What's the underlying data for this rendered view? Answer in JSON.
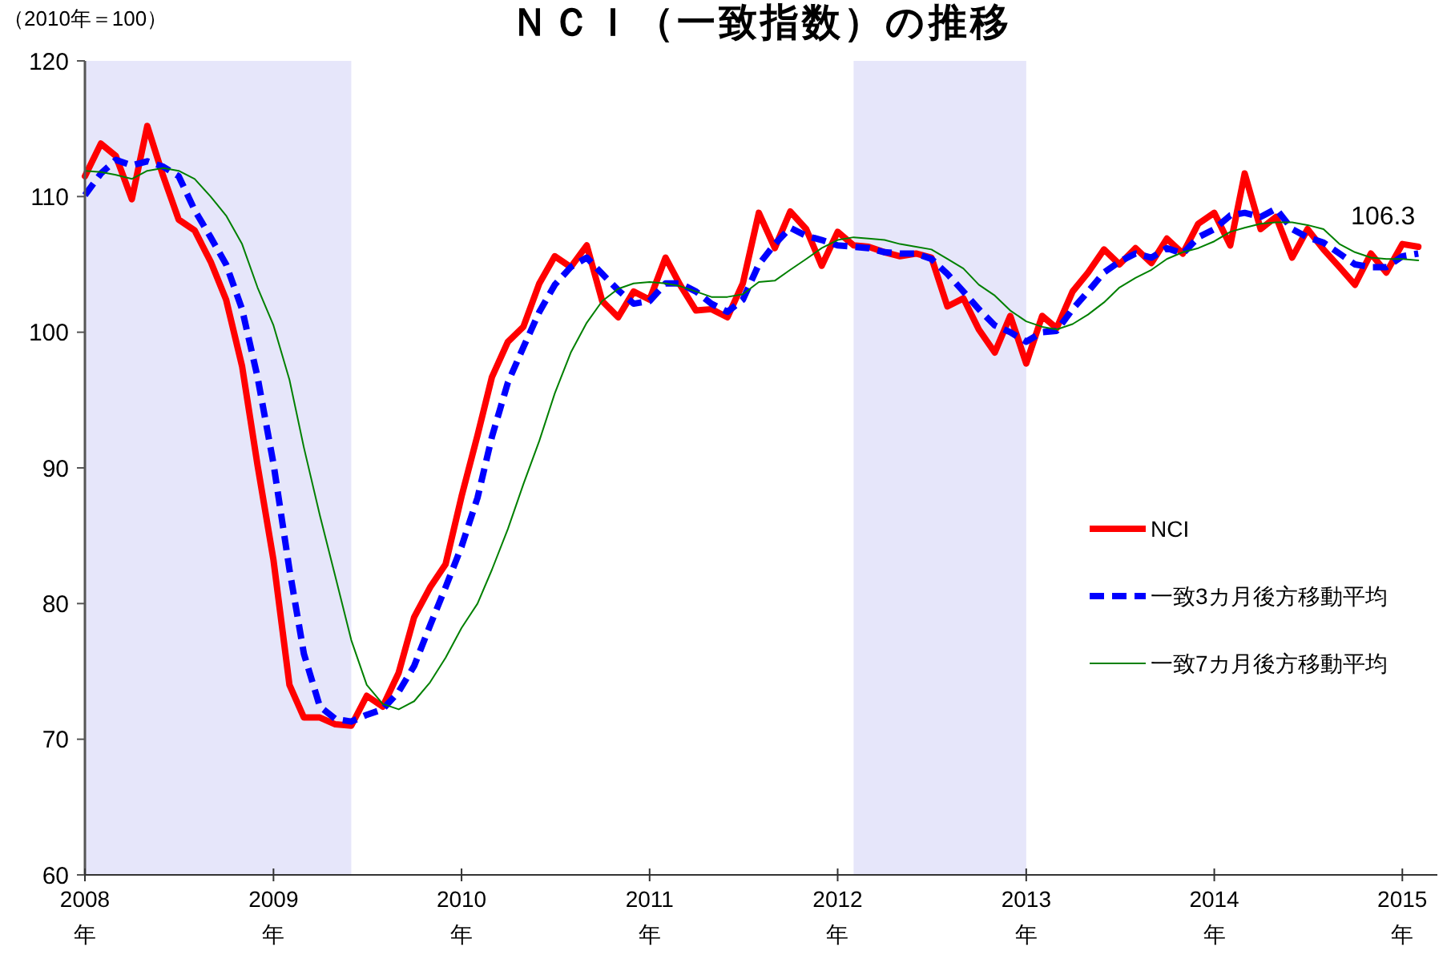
{
  "chart_data": {
    "type": "line",
    "title": "ＮＣＩ（一致指数）の推移",
    "ylabel": "（2010年＝100）",
    "x": [
      "2008-01",
      "2008-02",
      "2008-03",
      "2008-04",
      "2008-05",
      "2008-06",
      "2008-07",
      "2008-08",
      "2008-09",
      "2008-10",
      "2008-11",
      "2008-12",
      "2009-01",
      "2009-02",
      "2009-03",
      "2009-04",
      "2009-05",
      "2009-06",
      "2009-07",
      "2009-08",
      "2009-09",
      "2009-10",
      "2009-11",
      "2009-12",
      "2010-01",
      "2010-02",
      "2010-03",
      "2010-04",
      "2010-05",
      "2010-06",
      "2010-07",
      "2010-08",
      "2010-09",
      "2010-10",
      "2010-11",
      "2010-12",
      "2011-01",
      "2011-02",
      "2011-03",
      "2011-04",
      "2011-05",
      "2011-06",
      "2011-07",
      "2011-08",
      "2011-09",
      "2011-10",
      "2011-11",
      "2011-12",
      "2012-01",
      "2012-02",
      "2012-03",
      "2012-04",
      "2012-05",
      "2012-06",
      "2012-07",
      "2012-08",
      "2012-09",
      "2012-10",
      "2012-11",
      "2012-12",
      "2013-01",
      "2013-02",
      "2013-03",
      "2013-04",
      "2013-05",
      "2013-06",
      "2013-07",
      "2013-08",
      "2013-09",
      "2013-10",
      "2013-11",
      "2013-12",
      "2014-01",
      "2014-02",
      "2014-03",
      "2014-04",
      "2014-05",
      "2014-06",
      "2014-07",
      "2014-08",
      "2014-09",
      "2014-10",
      "2014-11",
      "2014-12",
      "2015-01",
      "2015-02"
    ],
    "series": [
      {
        "name": "NCI",
        "color": "#ff0000",
        "line_style": "solid",
        "values": [
          111.5,
          113.9,
          113.0,
          109.8,
          115.2,
          111.5,
          108.3,
          107.5,
          105.2,
          102.4,
          97.5,
          90.2,
          83.2,
          74.0,
          71.6,
          71.6,
          71.1,
          71.0,
          73.2,
          72.4,
          74.9,
          79.0,
          81.2,
          82.9,
          87.9,
          92.4,
          96.7,
          99.3,
          100.4,
          103.6,
          105.6,
          104.8,
          106.4,
          102.3,
          101.1,
          103.0,
          102.4,
          105.5,
          103.5,
          101.6,
          101.7,
          101.1,
          103.6,
          108.8,
          106.2,
          108.9,
          107.6,
          104.9,
          107.4,
          106.4,
          106.3,
          105.9,
          105.6,
          105.8,
          105.5,
          101.9,
          102.5,
          100.2,
          98.5,
          101.2,
          97.7,
          101.2,
          100.3,
          103.0,
          104.4,
          106.1,
          105.0,
          106.2,
          105.1,
          106.9,
          105.8,
          108.0,
          108.8,
          106.4,
          111.7,
          107.6,
          108.5,
          105.5,
          107.6,
          106.1,
          104.8,
          103.5,
          105.8,
          104.4,
          106.5,
          106.3
        ]
      },
      {
        "name": "一致3カ月後方移動平均",
        "color": "#0000ff",
        "line_style": "dashed",
        "values": [
          110.1,
          111.7,
          112.7,
          112.3,
          112.6,
          112.2,
          111.5,
          109.0,
          107.0,
          105.0,
          101.7,
          96.7,
          90.3,
          82.5,
          76.3,
          72.4,
          71.5,
          71.3,
          71.8,
          72.2,
          73.5,
          75.4,
          78.4,
          81.2,
          84.2,
          87.8,
          92.3,
          96.3,
          98.9,
          101.5,
          103.5,
          104.8,
          105.5,
          104.3,
          103.1,
          102.1,
          102.3,
          103.6,
          103.6,
          103.0,
          102.1,
          101.5,
          102.4,
          105.0,
          106.5,
          107.7,
          107.1,
          106.8,
          106.4,
          106.3,
          106.2,
          105.9,
          105.8,
          105.8,
          105.4,
          104.3,
          103.0,
          101.7,
          100.5,
          100.0,
          99.3,
          100.0,
          100.1,
          101.7,
          103.0,
          104.4,
          105.2,
          105.8,
          105.5,
          106.2,
          105.8,
          107.0,
          107.6,
          108.6,
          108.8,
          108.5,
          109.1,
          107.6,
          107.0,
          106.6,
          105.8,
          105.0,
          104.8,
          104.8,
          105.6,
          105.8
        ]
      },
      {
        "name": "一致7カ月後方移動平均",
        "color": "#008000",
        "line_style": "solid",
        "values": [
          111.9,
          111.8,
          111.6,
          111.3,
          111.9,
          112.1,
          111.9,
          111.3,
          110.0,
          108.6,
          106.5,
          103.3,
          100.5,
          96.5,
          91.5,
          86.5,
          82.0,
          77.3,
          74.0,
          72.6,
          72.2,
          72.8,
          74.2,
          76.0,
          78.2,
          80.0,
          82.5,
          85.5,
          88.8,
          92.0,
          95.5,
          98.5,
          100.7,
          102.3,
          103.2,
          103.6,
          103.7,
          103.6,
          103.4,
          103.0,
          102.6,
          102.6,
          102.8,
          103.7,
          103.8,
          104.6,
          105.4,
          106.2,
          106.8,
          107.0,
          106.9,
          106.8,
          106.5,
          106.3,
          106.1,
          105.4,
          104.7,
          103.5,
          102.7,
          101.6,
          100.8,
          100.4,
          100.2,
          100.6,
          101.3,
          102.2,
          103.3,
          104.0,
          104.6,
          105.4,
          105.9,
          106.2,
          106.7,
          107.4,
          107.7,
          108.0,
          108.1,
          108.1,
          107.9,
          107.6,
          106.5,
          105.9,
          105.5,
          105.4,
          105.4,
          105.3
        ]
      }
    ],
    "xlim": [
      "2008-01-01",
      "2015-03-10"
    ],
    "xticks": [
      {
        "value": "2008-01",
        "label": "2008\n年"
      },
      {
        "value": "2009-01",
        "label": "2009\n年"
      },
      {
        "value": "2010-01",
        "label": "2010\n年"
      },
      {
        "value": "2011-01",
        "label": "2011\n年"
      },
      {
        "value": "2012-01",
        "label": "2012\n年"
      },
      {
        "value": "2013-01",
        "label": "2013\n年"
      },
      {
        "value": "2014-01",
        "label": "2014\n年"
      },
      {
        "value": "2015-01",
        "label": "2015\n年"
      }
    ],
    "ylim": [
      60,
      120
    ],
    "yticks": [
      60,
      70,
      80,
      90,
      100,
      110,
      120
    ],
    "bands": [
      {
        "axis": "x",
        "from": "2008-01",
        "to": "2009-06",
        "color": "#e6e6fa"
      },
      {
        "axis": "x",
        "from": "2012-02",
        "to": "2013-01",
        "color": "#e6e6fa"
      }
    ],
    "annotations": [
      {
        "text": "106.3",
        "x": "2015-02",
        "y": 106.3
      }
    ],
    "grid": false,
    "legend": "right",
    "marker": "none"
  }
}
